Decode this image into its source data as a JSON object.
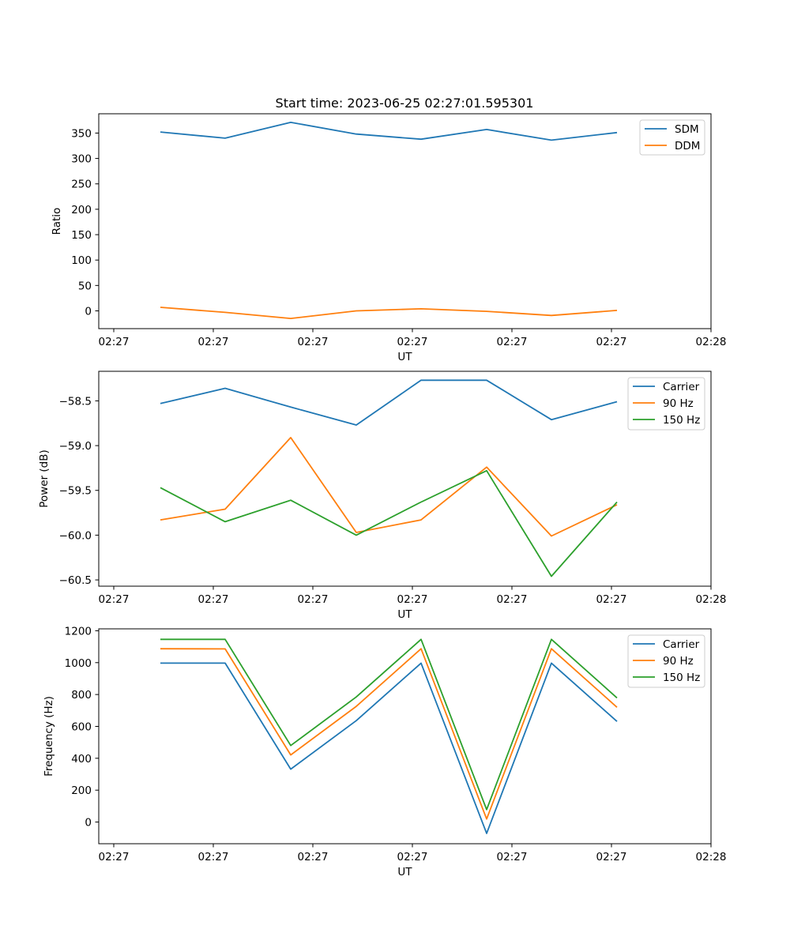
{
  "figure_title": "Start time: 2023-06-25 02:27:01.595301",
  "colors": {
    "blue": "#1f77b4",
    "orange": "#ff7f0e",
    "green": "#2ca02c"
  },
  "chart_data": [
    {
      "type": "line",
      "title": "Start time: 2023-06-25 02:27:01.595301",
      "xlabel": "UT",
      "ylabel": "Ratio",
      "xticks": [
        "02:27",
        "02:27",
        "02:27",
        "02:27",
        "02:27",
        "02:27",
        "02:28"
      ],
      "yticks": [
        0,
        50,
        100,
        150,
        200,
        250,
        300,
        350
      ],
      "ylim": [
        -35,
        388
      ],
      "legend": "top-right",
      "grid": false,
      "series": [
        {
          "name": "SDM",
          "color": "#1f77b4",
          "values": [
            352,
            340,
            371,
            348,
            338,
            357,
            336,
            351
          ]
        },
        {
          "name": "DDM",
          "color": "#ff7f0e",
          "values": [
            7,
            -3,
            -15,
            0,
            4,
            -1,
            -9,
            1
          ]
        }
      ]
    },
    {
      "type": "line",
      "xlabel": "UT",
      "ylabel": "Power (dB)",
      "xticks": [
        "02:27",
        "02:27",
        "02:27",
        "02:27",
        "02:27",
        "02:27",
        "02:28"
      ],
      "yticks": [
        -58.5,
        -59.0,
        -59.5,
        -60.0,
        -60.5
      ],
      "ytick_labels": [
        "−58.5",
        "−59.0",
        "−59.5",
        "−60.0",
        "−60.5"
      ],
      "ylim": [
        -60.57,
        -58.17
      ],
      "legend": "top-right",
      "grid": false,
      "series": [
        {
          "name": "Carrier",
          "color": "#1f77b4",
          "values": [
            -58.53,
            -58.36,
            -58.57,
            -58.77,
            -58.27,
            -58.27,
            -58.71,
            -58.51
          ]
        },
        {
          "name": "90 Hz",
          "color": "#ff7f0e",
          "values": [
            -59.83,
            -59.71,
            -58.91,
            -59.97,
            -59.83,
            -59.24,
            -60.01,
            -59.66
          ]
        },
        {
          "name": "150 Hz",
          "color": "#2ca02c",
          "values": [
            -59.47,
            -59.85,
            -59.61,
            -60.0,
            -59.63,
            -59.28,
            -60.46,
            -59.63
          ]
        }
      ]
    },
    {
      "type": "line",
      "xlabel": "UT",
      "ylabel": "Frequency (Hz)",
      "xticks": [
        "02:27",
        "02:27",
        "02:27",
        "02:27",
        "02:27",
        "02:27",
        "02:28"
      ],
      "yticks": [
        0,
        200,
        400,
        600,
        800,
        1000,
        1200
      ],
      "ylim": [
        -136,
        1212
      ],
      "legend": "top-right",
      "grid": false,
      "series": [
        {
          "name": "Carrier",
          "color": "#1f77b4",
          "values": [
            997,
            997,
            332,
            636,
            997,
            -71,
            997,
            631
          ]
        },
        {
          "name": "90 Hz",
          "color": "#ff7f0e",
          "values": [
            1087,
            1086,
            421,
            726,
            1087,
            19,
            1087,
            720
          ]
        },
        {
          "name": "150 Hz",
          "color": "#2ca02c",
          "values": [
            1146,
            1146,
            480,
            785,
            1146,
            78,
            1146,
            779
          ]
        }
      ]
    }
  ]
}
